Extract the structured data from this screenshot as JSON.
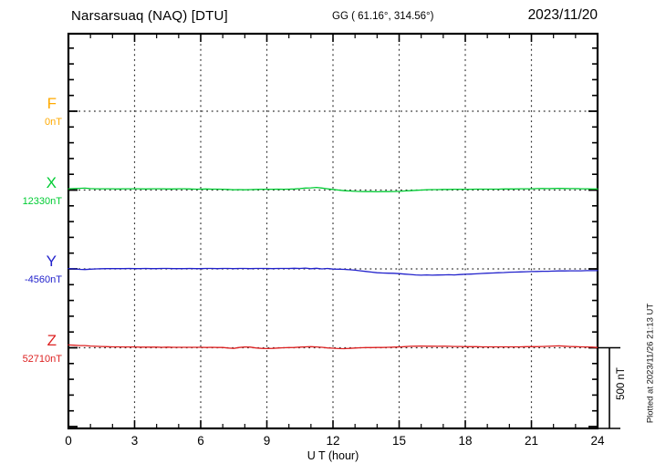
{
  "header": {
    "title": "Narsarsuaq (NAQ)  [DTU]",
    "coords": "GG ( 61.16°, 314.56°)",
    "date": "2023/11/20"
  },
  "axis": {
    "xlabel": "U T (hour)",
    "tick_labels": [
      0,
      3,
      6,
      9,
      12,
      15,
      18,
      21,
      24
    ],
    "minor_step_hours": 1
  },
  "scale_bar": {
    "label": "500 nT",
    "value_nT": 500
  },
  "footer_note": "Plotted at 2023/11/26 21:13 UT",
  "colors": {
    "F": "#ffaa00",
    "X": "#00cc33",
    "Y": "#2222cc",
    "Z": "#dd2222",
    "frame": "#000000",
    "grid": "#333333"
  },
  "channels": [
    {
      "id": "F",
      "label": "F",
      "value": "0nT"
    },
    {
      "id": "X",
      "label": "X",
      "value": "12330nT"
    },
    {
      "id": "Y",
      "label": "Y",
      "value": "-4560nT"
    },
    {
      "id": "Z",
      "label": "Z",
      "value": "52710nT"
    }
  ],
  "chart_data": {
    "type": "line",
    "title": "Narsarsuaq (NAQ) [DTU] magnetogram, 2023/11/20",
    "xlabel": "U T (hour)",
    "x_range_hours": [
      0,
      24
    ],
    "x_step_hours": 0.25,
    "x_major_ticks": [
      0,
      3,
      6,
      9,
      12,
      15,
      18,
      21,
      24
    ],
    "grid": "dotted verticals every 3 h; dotted horizontal at each channel baseline",
    "row_spacing_nT": 500,
    "scale_bar_nT": 500,
    "legend_position": "left margin (channel letters with baseline values)",
    "series": [
      {
        "name": "F",
        "baseline_nT": 0,
        "note": "no trace plotted (no data)",
        "offsets_nT": []
      },
      {
        "name": "X",
        "baseline_nT": 12330,
        "offsets_nT": [
          8,
          9,
          11,
          12,
          9,
          8,
          8,
          8,
          8,
          7,
          8,
          8,
          8,
          8,
          7,
          8,
          8,
          8,
          7,
          7,
          8,
          8,
          7,
          6,
          6,
          7,
          6,
          6,
          5,
          4,
          2,
          3,
          2,
          3,
          4,
          5,
          5,
          5,
          6,
          5,
          6,
          7,
          9,
          13,
          14,
          17,
          13,
          8,
          4,
          0,
          -4,
          -6,
          -8,
          -9,
          -10,
          -10,
          -11,
          -10,
          -10,
          -9,
          -8,
          -6,
          -4,
          -2,
          0,
          2,
          3,
          3,
          4,
          4,
          5,
          5,
          5,
          5,
          6,
          6,
          6,
          6,
          6,
          7,
          7,
          7,
          8,
          8,
          8,
          9,
          10,
          9,
          10,
          11,
          10,
          9,
          9,
          8,
          8,
          7,
          7
        ]
      },
      {
        "name": "Y",
        "baseline_nT": -4560,
        "offsets_nT": [
          2,
          0,
          -3,
          -4,
          -2,
          0,
          1,
          2,
          2,
          2,
          2,
          3,
          2,
          2,
          3,
          2,
          2,
          3,
          3,
          2,
          2,
          2,
          3,
          2,
          2,
          3,
          3,
          2,
          3,
          3,
          2,
          3,
          3,
          2,
          3,
          3,
          3,
          2,
          3,
          3,
          3,
          4,
          3,
          5,
          1,
          4,
          0,
          3,
          -1,
          -2,
          -3,
          -5,
          -8,
          -12,
          -16,
          -20,
          -24,
          -26,
          -27,
          -28,
          -30,
          -33,
          -35,
          -38,
          -40,
          -38,
          -40,
          -39,
          -38,
          -37,
          -38,
          -36,
          -34,
          -33,
          -31,
          -29,
          -27,
          -26,
          -24,
          -23,
          -21,
          -20,
          -19,
          -18,
          -17,
          -16,
          -15,
          -15,
          -14,
          -13,
          -13,
          -12,
          -12,
          -12,
          -11,
          -11,
          -11
        ]
      },
      {
        "name": "Z",
        "baseline_nT": 52710,
        "offsets_nT": [
          18,
          16,
          14,
          14,
          11,
          9,
          8,
          7,
          6,
          6,
          5,
          5,
          5,
          4,
          4,
          4,
          4,
          3,
          4,
          3,
          3,
          3,
          3,
          3,
          3,
          2,
          3,
          2,
          2,
          -2,
          -4,
          2,
          5,
          4,
          -1,
          -4,
          -5,
          -4,
          -2,
          0,
          1,
          2,
          4,
          6,
          7,
          5,
          3,
          -1,
          -3,
          -5,
          -6,
          -4,
          -2,
          0,
          1,
          1,
          2,
          2,
          3,
          4,
          5,
          7,
          9,
          10,
          11,
          10,
          10,
          9,
          10,
          9,
          8,
          8,
          7,
          7,
          7,
          6,
          6,
          6,
          6,
          6,
          6,
          6,
          6,
          7,
          7,
          7,
          8,
          9,
          11,
          12,
          10,
          8,
          7,
          6,
          5,
          4,
          2
        ]
      }
    ]
  }
}
